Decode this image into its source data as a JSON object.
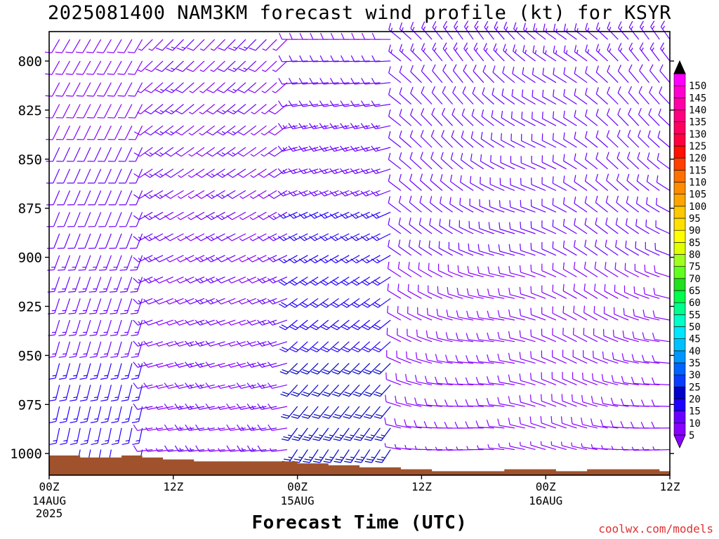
{
  "title": "2025081400 NAM3KM forecast wind profile (kt) for KSYR",
  "credit": "coolwx.com/models",
  "chart_data": {
    "type": "wind_barb_profile",
    "title": "2025081400 NAM3KM forecast wind profile (kt) for KSYR",
    "xlabel": "Forecast Time (UTC)",
    "ylabel": "",
    "x_ticks": [
      {
        "hour": 0,
        "label": "00Z",
        "sub": [
          "14AUG",
          "2025"
        ]
      },
      {
        "hour": 12,
        "label": "12Z",
        "sub": []
      },
      {
        "hour": 24,
        "label": "00Z",
        "sub": [
          "15AUG"
        ]
      },
      {
        "hour": 36,
        "label": "12Z",
        "sub": []
      },
      {
        "hour": 48,
        "label": "00Z",
        "sub": [
          "16AUG"
        ]
      },
      {
        "hour": 60,
        "label": "12Z",
        "sub": []
      }
    ],
    "xlim": [
      0,
      60
    ],
    "y_ticks": [
      800,
      825,
      850,
      875,
      900,
      925,
      950,
      975,
      1000
    ],
    "ylim": [
      785,
      1011
    ],
    "y_scale": "linear, pressure increasing downward",
    "colorbar": {
      "units": "kt",
      "levels": [
        5,
        10,
        15,
        20,
        25,
        30,
        35,
        40,
        45,
        50,
        55,
        60,
        65,
        70,
        75,
        80,
        85,
        90,
        95,
        100,
        105,
        110,
        115,
        120,
        125,
        130,
        135,
        140,
        145,
        150
      ],
      "colors": [
        "#8800ff",
        "#6a00ff",
        "#2000ff",
        "#0000c8",
        "#0a3cff",
        "#0064ff",
        "#0096ff",
        "#00c0ff",
        "#00e6ff",
        "#00ffc8",
        "#00ff8c",
        "#00ff4c",
        "#20e020",
        "#60ff20",
        "#a0ff20",
        "#e0ff00",
        "#ffff00",
        "#ffe000",
        "#ffc800",
        "#ffa500",
        "#ff8c00",
        "#ff7000",
        "#ff4000",
        "#ff1000",
        "#ff0040",
        "#ff0060",
        "#ff0080",
        "#ff00a8",
        "#ff00d0",
        "#ff00ff"
      ]
    },
    "terrain": {
      "color": "#a0522d",
      "surface_pressure": [
        {
          "hour": 0,
          "p": 1001
        },
        {
          "hour": 3,
          "p": 1002
        },
        {
          "hour": 7,
          "p": 1001
        },
        {
          "hour": 9,
          "p": 1002
        },
        {
          "hour": 11,
          "p": 1003
        },
        {
          "hour": 14,
          "p": 1004
        },
        {
          "hour": 21,
          "p": 1004
        },
        {
          "hour": 24,
          "p": 1005
        },
        {
          "hour": 27,
          "p": 1006
        },
        {
          "hour": 30,
          "p": 1007
        },
        {
          "hour": 34,
          "p": 1008
        },
        {
          "hour": 37,
          "p": 1009
        },
        {
          "hour": 44,
          "p": 1008
        },
        {
          "hour": 49,
          "p": 1009
        },
        {
          "hour": 52,
          "p": 1008
        },
        {
          "hour": 55,
          "p": 1008
        },
        {
          "hour": 59,
          "p": 1009
        },
        {
          "hour": 60,
          "p": 1009
        }
      ]
    },
    "wind_field": {
      "hours_step": 1,
      "levels_hpa": [
        789,
        800,
        811,
        822,
        833,
        844,
        855,
        866,
        877,
        888,
        899,
        910,
        921,
        932,
        943,
        954,
        965,
        976,
        987,
        998
      ],
      "direction_regimes": [
        {
          "hours": [
            0,
            10
          ],
          "desc": "southerly to south-southwesterly, 5-20 kt, strongest low-levels"
        },
        {
          "hours": [
            10,
            24
          ],
          "desc": "southwesterly aloft, veering to westerly near surface"
        },
        {
          "hours": [
            24,
            34
          ],
          "desc": "southwesterly low-levels 15-25 kt, westerly aloft"
        },
        {
          "hours": [
            34,
            60
          ],
          "desc": "westerly to northwesterly, 5-15 kt"
        }
      ]
    }
  }
}
